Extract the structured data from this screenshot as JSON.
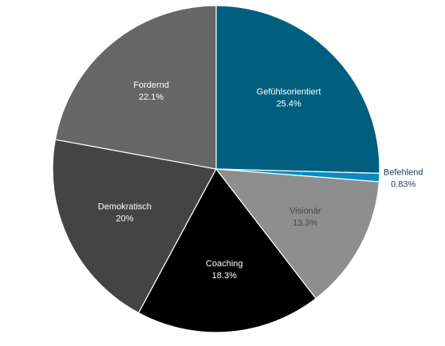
{
  "chart_data": {
    "type": "pie",
    "title": "",
    "slices": [
      {
        "label": "Gefühlsorientiert",
        "value": 25.4,
        "display": "25.4%",
        "color": "#005f7f",
        "label_color": "#ffffff",
        "label_inside": true
      },
      {
        "label": "Befehlend",
        "value": 0.83,
        "display": "0.83%",
        "color": "#0a8bbf",
        "label_color": "#1f3b57",
        "label_inside": false
      },
      {
        "label": "Visionär",
        "value": 13.3,
        "display": "13.3%",
        "color": "#8e8e8e",
        "label_color": "#4a4a4a",
        "label_inside": true
      },
      {
        "label": "Coaching",
        "value": 18.3,
        "display": "18.3%",
        "color": "#000000",
        "label_color": "#ffffff",
        "label_inside": true
      },
      {
        "label": "Demokratisch",
        "value": 20,
        "display": "20%",
        "color": "#444444",
        "label_color": "#ffffff",
        "label_inside": true
      },
      {
        "label": "Fordernd",
        "value": 22.1,
        "display": "22.1%",
        "color": "#666666",
        "label_color": "#ffffff",
        "label_inside": true
      }
    ],
    "start_angle_deg": 0,
    "direction": "clockwise",
    "legend": "none"
  }
}
